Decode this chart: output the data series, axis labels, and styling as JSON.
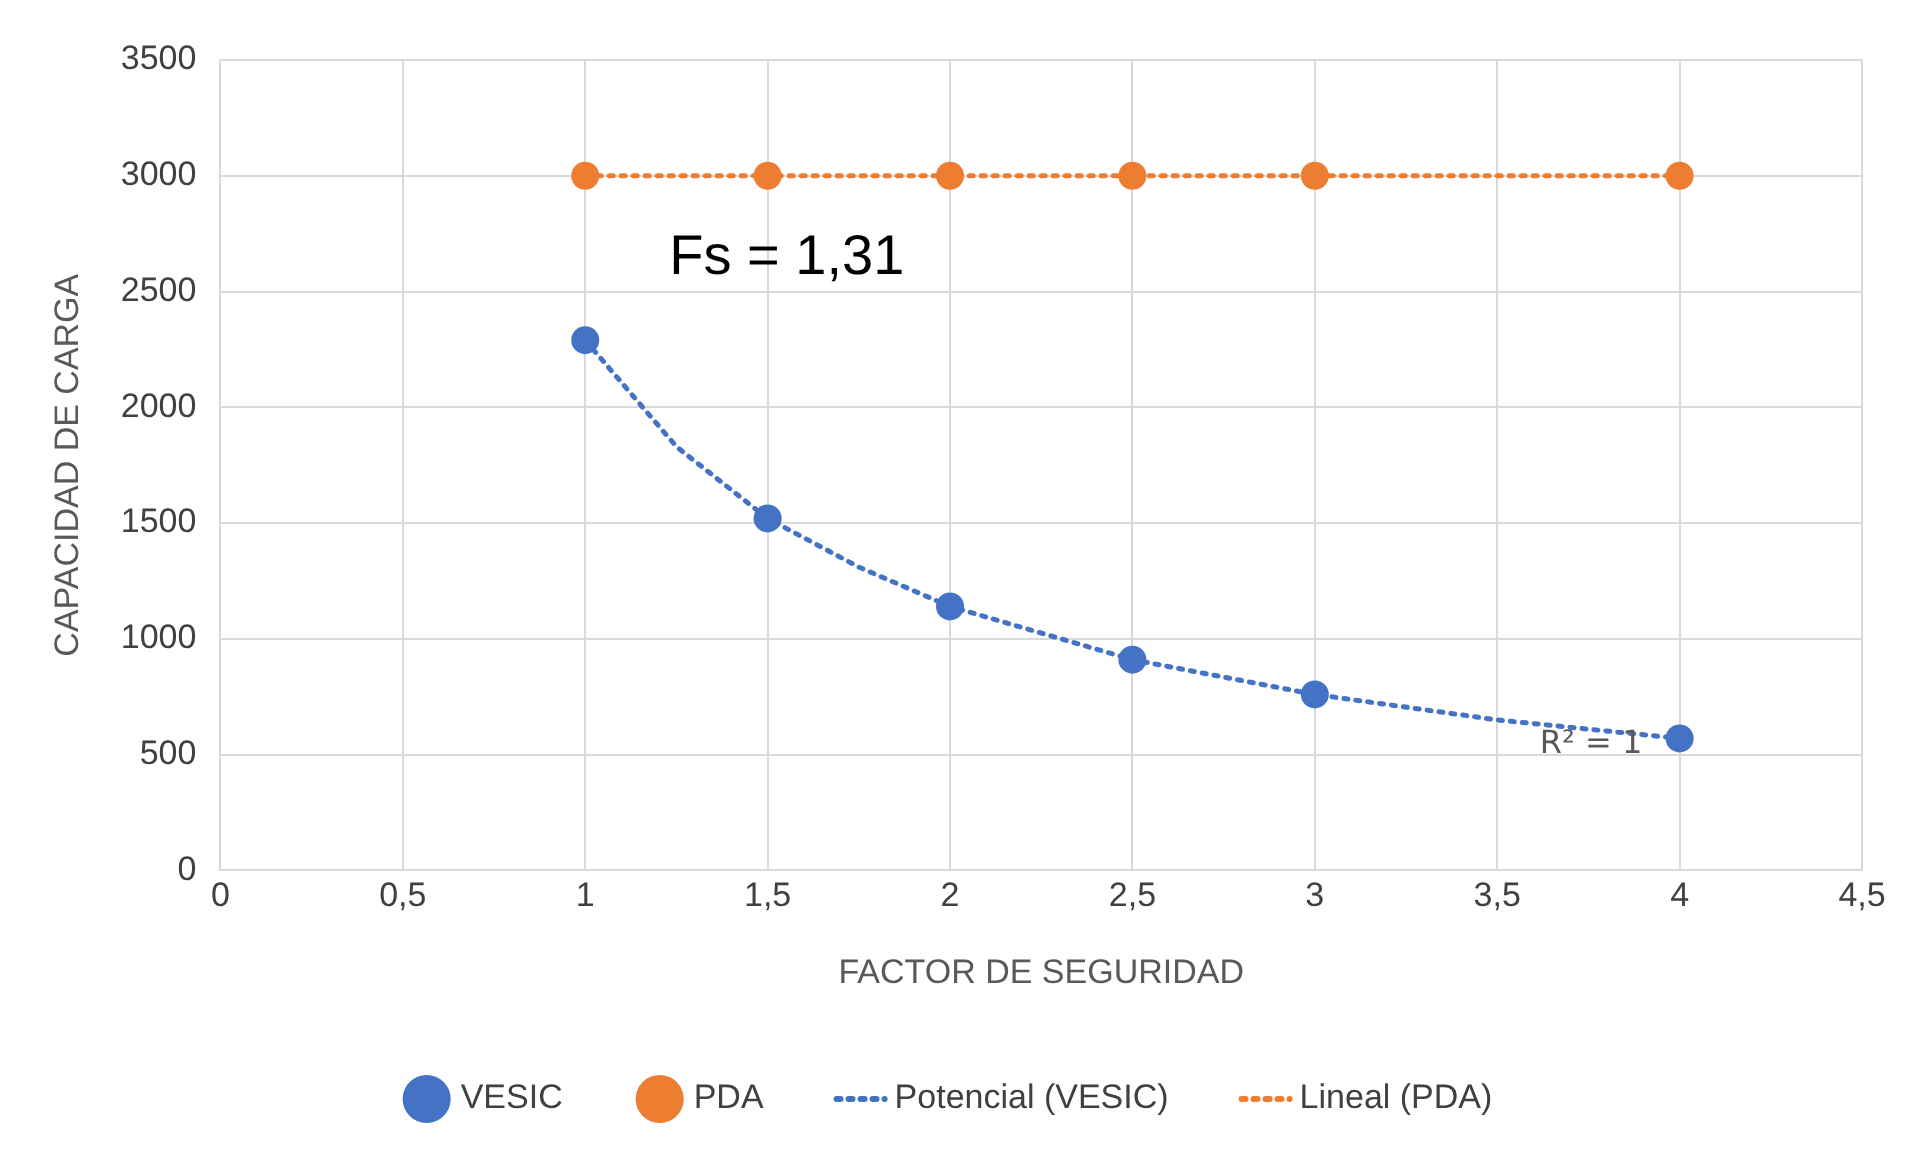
{
  "chart_data": {
    "type": "scatter",
    "xlabel": "FACTOR DE SEGURIDAD",
    "ylabel": "CAPACIDAD DE CARGA",
    "xlim": [
      0,
      4.5
    ],
    "xticks": [
      0,
      {
        "value": 0.5,
        "label": "0,5"
      },
      1,
      {
        "value": 1.5,
        "label": "1,5"
      },
      2,
      {
        "value": 2.5,
        "label": "2,5"
      },
      3,
      {
        "value": 3.5,
        "label": "3,5"
      },
      4,
      {
        "value": 4.5,
        "label": "4,5"
      }
    ],
    "ylim": [
      0,
      3500
    ],
    "yticks": [
      0,
      500,
      1000,
      1500,
      2000,
      2500,
      3000,
      3500
    ],
    "grid": true,
    "legend": "bottom",
    "marker": "circle",
    "series": [
      {
        "name": "VESIC",
        "type": "scatter",
        "color": "#4472c4",
        "x": [
          1,
          1.5,
          2,
          2.5,
          3,
          4
        ],
        "values": [
          2290,
          1520,
          1140,
          910,
          760,
          570
        ]
      },
      {
        "name": "PDA",
        "type": "scatter",
        "color": "#ed7d31",
        "x": [
          1,
          1.5,
          2,
          2.5,
          3,
          4
        ],
        "values": [
          3000,
          3000,
          3000,
          3000,
          3000,
          3000
        ]
      },
      {
        "name": "Potencial (VESIC)",
        "type": "line",
        "color": "#4472c4",
        "line_style": "dotted",
        "marker": "none",
        "x": [
          1,
          1.25,
          1.5,
          1.75,
          2,
          2.5,
          3,
          3.5,
          4
        ],
        "values": [
          2290,
          1830,
          1520,
          1310,
          1140,
          910,
          760,
          650,
          570
        ]
      },
      {
        "name": "Lineal (PDA)",
        "type": "line",
        "color": "#ed7d31",
        "line_style": "dotted",
        "marker": "none",
        "x": [
          1,
          4
        ],
        "values": [
          3000,
          3000
        ]
      }
    ],
    "annotations": [
      "Fs = 1,31",
      "R² = 1"
    ]
  }
}
